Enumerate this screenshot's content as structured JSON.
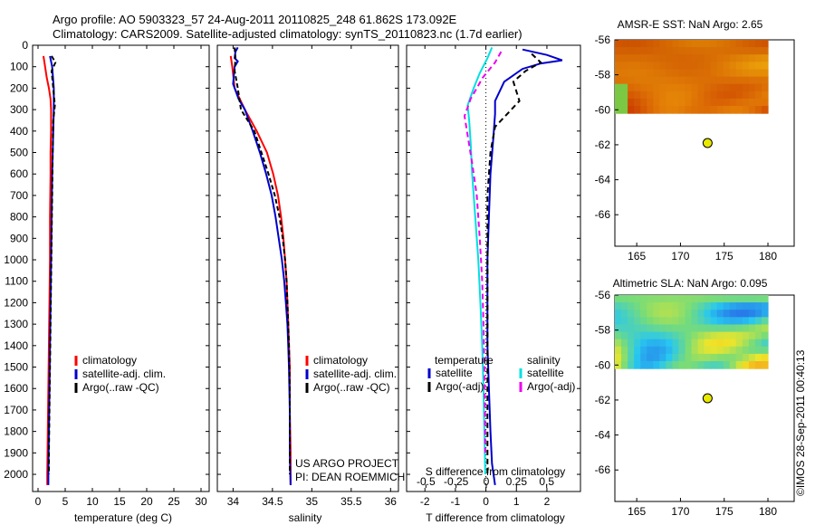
{
  "header": {
    "line1": "Argo profile: AO 5903323_57 24-Aug-2011 20110825_248 61.862S 173.092E",
    "line2": "Climatology: CARS2009. Satellite-adjusted climatology: synTS_20110823.nc (1.7d earlier)"
  },
  "credits": {
    "project": "US ARGO PROJECT",
    "pi": "PI: DEAN ROEMMICH",
    "side": "©IMOS 28-Sep-2011 00:40:13"
  },
  "colors": {
    "climatology": "#ff0000",
    "satellite": "#0000cc",
    "argo": "#000000",
    "salinity_satellite": "#00e0e0",
    "salinity_argo": "#ee00ee",
    "marker": "#e8e800"
  },
  "chart_data": [
    {
      "type": "line",
      "id": "temperature_panel",
      "xlabel": "temperature (deg C)",
      "ylabel": "",
      "xlim": [
        -1,
        31.5
      ],
      "ylim": [
        2080,
        0
      ],
      "x_ticks": [
        "0",
        "5",
        "10",
        "15",
        "20",
        "25",
        "30"
      ],
      "x_tick_values": [
        0,
        5,
        10,
        15,
        20,
        25,
        30
      ],
      "y_ticks": [
        "0",
        "100",
        "200",
        "300",
        "400",
        "500",
        "600",
        "700",
        "800",
        "900",
        "1000",
        "1100",
        "1200",
        "1300",
        "1400",
        "1500",
        "1600",
        "1700",
        "1800",
        "1900",
        "2000"
      ],
      "y_tick_values": [
        0,
        100,
        200,
        300,
        400,
        500,
        600,
        700,
        800,
        900,
        1000,
        1100,
        1200,
        1300,
        1400,
        1500,
        1600,
        1700,
        1800,
        1900,
        2000
      ],
      "legend": [
        "climatology",
        "satellite-adj. clim.",
        "Argo(..raw -QC)"
      ],
      "legend_position": "lower-middle",
      "series": [
        {
          "name": "climatology",
          "color": "#ff0000",
          "dash": "",
          "points": [
            [
              1.0,
              50
            ],
            [
              1.3,
              100
            ],
            [
              1.6,
              150
            ],
            [
              2.0,
              200
            ],
            [
              2.3,
              250
            ],
            [
              2.4,
              300
            ],
            [
              2.4,
              400
            ],
            [
              2.3,
              500
            ],
            [
              2.3,
              600
            ],
            [
              2.2,
              800
            ],
            [
              2.2,
              1000
            ],
            [
              2.1,
              1200
            ],
            [
              2.0,
              1400
            ],
            [
              1.9,
              1600
            ],
            [
              1.8,
              1800
            ],
            [
              1.7,
              2000
            ],
            [
              1.7,
              2050
            ]
          ]
        },
        {
          "name": "satellite-adj. clim.",
          "color": "#0000cc",
          "dash": "",
          "points": [
            [
              2.2,
              50
            ],
            [
              2.6,
              100
            ],
            [
              2.9,
              200
            ],
            [
              2.9,
              300
            ],
            [
              2.8,
              400
            ],
            [
              2.7,
              500
            ],
            [
              2.6,
              600
            ],
            [
              2.5,
              800
            ],
            [
              2.4,
              1000
            ],
            [
              2.3,
              1200
            ],
            [
              2.2,
              1400
            ],
            [
              2.1,
              1600
            ],
            [
              2.0,
              1800
            ],
            [
              1.9,
              2000
            ],
            [
              1.9,
              2050
            ]
          ]
        },
        {
          "name": "Argo(..raw -QC)",
          "color": "#000000",
          "dash": "5,3",
          "points": [
            [
              2.5,
              50
            ],
            [
              3.2,
              80
            ],
            [
              2.5,
              120
            ],
            [
              2.8,
              200
            ],
            [
              3.1,
              280
            ],
            [
              2.8,
              350
            ],
            [
              2.7,
              500
            ],
            [
              2.6,
              700
            ],
            [
              2.5,
              900
            ],
            [
              2.4,
              1100
            ],
            [
              2.3,
              1300
            ],
            [
              2.2,
              1500
            ],
            [
              2.1,
              1700
            ],
            [
              2.0,
              1900
            ],
            [
              2.0,
              2000
            ]
          ]
        }
      ]
    },
    {
      "type": "line",
      "id": "salinity_panel",
      "xlabel": "salinity",
      "xlim": [
        33.8,
        36.1
      ],
      "ylim": [
        2080,
        0
      ],
      "x_ticks": [
        "34",
        "34.5",
        "35",
        "35.5",
        "36"
      ],
      "x_tick_values": [
        34,
        34.5,
        35,
        35.5,
        36
      ],
      "legend": [
        "climatology",
        "satellite-adj. clim.",
        "Argo(..raw -QC)"
      ],
      "legend_position": "lower-right",
      "series": [
        {
          "name": "climatology",
          "color": "#ff0000",
          "dash": "",
          "points": [
            [
              33.97,
              50
            ],
            [
              33.99,
              100
            ],
            [
              34.02,
              200
            ],
            [
              34.15,
              300
            ],
            [
              34.3,
              400
            ],
            [
              34.43,
              500
            ],
            [
              34.51,
              600
            ],
            [
              34.57,
              700
            ],
            [
              34.61,
              800
            ],
            [
              34.64,
              900
            ],
            [
              34.66,
              1000
            ],
            [
              34.68,
              1100
            ],
            [
              34.69,
              1200
            ],
            [
              34.7,
              1300
            ],
            [
              34.71,
              1400
            ],
            [
              34.72,
              1500
            ],
            [
              34.72,
              1700
            ],
            [
              34.73,
              1900
            ],
            [
              34.73,
              2050
            ]
          ]
        },
        {
          "name": "satellite-adj. clim.",
          "color": "#0000cc",
          "dash": "",
          "points": [
            [
              34.06,
              10
            ],
            [
              34.03,
              30
            ],
            [
              34.02,
              60
            ],
            [
              34.06,
              75
            ],
            [
              34.02,
              100
            ],
            [
              34.0,
              180
            ],
            [
              34.07,
              250
            ],
            [
              34.15,
              300
            ],
            [
              34.25,
              400
            ],
            [
              34.34,
              500
            ],
            [
              34.42,
              600
            ],
            [
              34.49,
              700
            ],
            [
              34.54,
              800
            ],
            [
              34.58,
              900
            ],
            [
              34.62,
              1000
            ],
            [
              34.65,
              1100
            ],
            [
              34.67,
              1200
            ],
            [
              34.69,
              1300
            ],
            [
              34.7,
              1400
            ],
            [
              34.71,
              1500
            ],
            [
              34.72,
              1700
            ],
            [
              34.72,
              1900
            ],
            [
              34.73,
              2050
            ]
          ]
        },
        {
          "name": "Argo(..raw -QC)",
          "color": "#000000",
          "dash": "5,3",
          "points": [
            [
              34.02,
              10
            ],
            [
              34.03,
              60
            ],
            [
              34.02,
              120
            ],
            [
              34.06,
              200
            ],
            [
              34.1,
              300
            ],
            [
              34.27,
              400
            ],
            [
              34.36,
              500
            ],
            [
              34.45,
              600
            ],
            [
              34.53,
              700
            ],
            [
              34.59,
              800
            ],
            [
              34.63,
              900
            ],
            [
              34.66,
              1000
            ],
            [
              34.68,
              1100
            ],
            [
              34.69,
              1200
            ],
            [
              34.7,
              1300
            ],
            [
              34.71,
              1400
            ],
            [
              34.72,
              1600
            ],
            [
              34.72,
              1800
            ],
            [
              34.72,
              2000
            ]
          ]
        }
      ]
    },
    {
      "type": "line",
      "id": "difference_panel",
      "xlabel": "T difference from climatology",
      "secondary_xlabel": "S difference from climatology",
      "xlim": [
        -2.6,
        3.1
      ],
      "ylim": [
        2080,
        0
      ],
      "x_ticks": [
        "-2",
        "-1",
        "0",
        "1",
        "2"
      ],
      "x_tick_values": [
        -2,
        -1,
        0,
        1,
        2
      ],
      "secondary_x_ticks": [
        "-0.5",
        "-0.25",
        "0",
        "0.25",
        "0.5"
      ],
      "secondary_x_tick_values": [
        -0.5,
        -0.25,
        0,
        0.25,
        0.5
      ],
      "legend_headers": [
        "temperature",
        "salinity"
      ],
      "legend": [
        "satellite",
        "Argo(-adj)",
        "satellite",
        "Argo(-adj)"
      ],
      "legend_position": "lower-middle",
      "series": [
        {
          "name": "satellite",
          "group": "temperature",
          "color": "#0000cc",
          "dash": "",
          "points": [
            [
              1.2,
              20
            ],
            [
              2.0,
              45
            ],
            [
              2.5,
              70
            ],
            [
              1.8,
              85
            ],
            [
              1.2,
              110
            ],
            [
              0.6,
              170
            ],
            [
              0.3,
              260
            ],
            [
              0.3,
              320
            ],
            [
              0.25,
              420
            ],
            [
              0.15,
              600
            ],
            [
              0.1,
              800
            ],
            [
              0.05,
              1000
            ],
            [
              0.05,
              1200
            ],
            [
              0.05,
              1400
            ],
            [
              0.1,
              1600
            ],
            [
              0.15,
              1800
            ],
            [
              0.2,
              1950
            ],
            [
              0.3,
              2050
            ]
          ]
        },
        {
          "name": "Argo(-adj)",
          "group": "temperature",
          "color": "#000000",
          "dash": "6,4",
          "points": [
            [
              1.5,
              40
            ],
            [
              1.8,
              80
            ],
            [
              1.3,
              120
            ],
            [
              0.9,
              170
            ],
            [
              1.1,
              260
            ],
            [
              0.7,
              320
            ],
            [
              0.3,
              380
            ],
            [
              0.15,
              500
            ],
            [
              0.05,
              700
            ],
            [
              0.05,
              900
            ],
            [
              0.05,
              1100
            ],
            [
              0.05,
              1300
            ],
            [
              0.05,
              1500
            ],
            [
              0.05,
              1700
            ],
            [
              0.05,
              1900
            ],
            [
              0.05,
              2000
            ]
          ]
        },
        {
          "name": "satellite",
          "group": "salinity",
          "color": "#00e0e0",
          "dash": "",
          "points": [
            [
              0.2,
              10
            ],
            [
              0.05,
              60
            ],
            [
              -0.2,
              130
            ],
            [
              -0.4,
              200
            ],
            [
              -0.6,
              280
            ],
            [
              -0.55,
              350
            ],
            [
              -0.5,
              450
            ],
            [
              -0.45,
              600
            ],
            [
              -0.35,
              800
            ],
            [
              -0.25,
              1000
            ],
            [
              -0.18,
              1200
            ],
            [
              -0.12,
              1400
            ],
            [
              -0.08,
              1600
            ],
            [
              -0.05,
              1800
            ],
            [
              -0.02,
              2000
            ]
          ]
        },
        {
          "name": "Argo(-adj)",
          "group": "salinity",
          "color": "#ee00ee",
          "dash": "6,4",
          "points": [
            [
              0.5,
              30
            ],
            [
              0.3,
              80
            ],
            [
              -0.1,
              150
            ],
            [
              -0.5,
              250
            ],
            [
              -0.7,
              330
            ],
            [
              -0.6,
              420
            ],
            [
              -0.45,
              550
            ],
            [
              -0.3,
              700
            ],
            [
              -0.2,
              900
            ],
            [
              -0.12,
              1100
            ],
            [
              -0.08,
              1300
            ],
            [
              -0.05,
              1500
            ],
            [
              -0.03,
              1700
            ],
            [
              -0.02,
              1900
            ]
          ]
        }
      ]
    },
    {
      "type": "heatmap",
      "id": "sst_map",
      "title": "AMSR-E SST: NaN Argo: 2.65",
      "xlim": [
        162.5,
        183
      ],
      "ylim": [
        -67.8,
        -56
      ],
      "x_ticks": [
        "165",
        "170",
        "175",
        "180"
      ],
      "x_tick_values": [
        165,
        170,
        175,
        180
      ],
      "y_ticks": [
        "-56",
        "-58",
        "-60",
        "-62",
        "-64",
        "-66"
      ],
      "y_tick_values": [
        -56,
        -58,
        -60,
        -62,
        -64,
        -66
      ],
      "field_extent": {
        "lon": [
          162.5,
          180
        ],
        "lat": [
          -60.2,
          -56
        ]
      },
      "argo_position": {
        "lon": 173.1,
        "lat": -61.9
      },
      "palette": "warm"
    },
    {
      "type": "heatmap",
      "id": "sla_map",
      "title": "Altimetric SLA: NaN Argo: 0.095",
      "xlim": [
        162.5,
        183
      ],
      "ylim": [
        -67.8,
        -56
      ],
      "x_ticks": [
        "165",
        "170",
        "175",
        "180"
      ],
      "x_tick_values": [
        165,
        170,
        175,
        180
      ],
      "y_ticks": [
        "-56",
        "-58",
        "-60",
        "-62",
        "-64",
        "-66"
      ],
      "y_tick_values": [
        -56,
        -58,
        -60,
        -62,
        -64,
        -66
      ],
      "field_extent": {
        "lon": [
          162.5,
          180
        ],
        "lat": [
          -60.2,
          -56
        ]
      },
      "argo_position": {
        "lon": 173.1,
        "lat": -61.9
      },
      "palette": "jet"
    }
  ]
}
